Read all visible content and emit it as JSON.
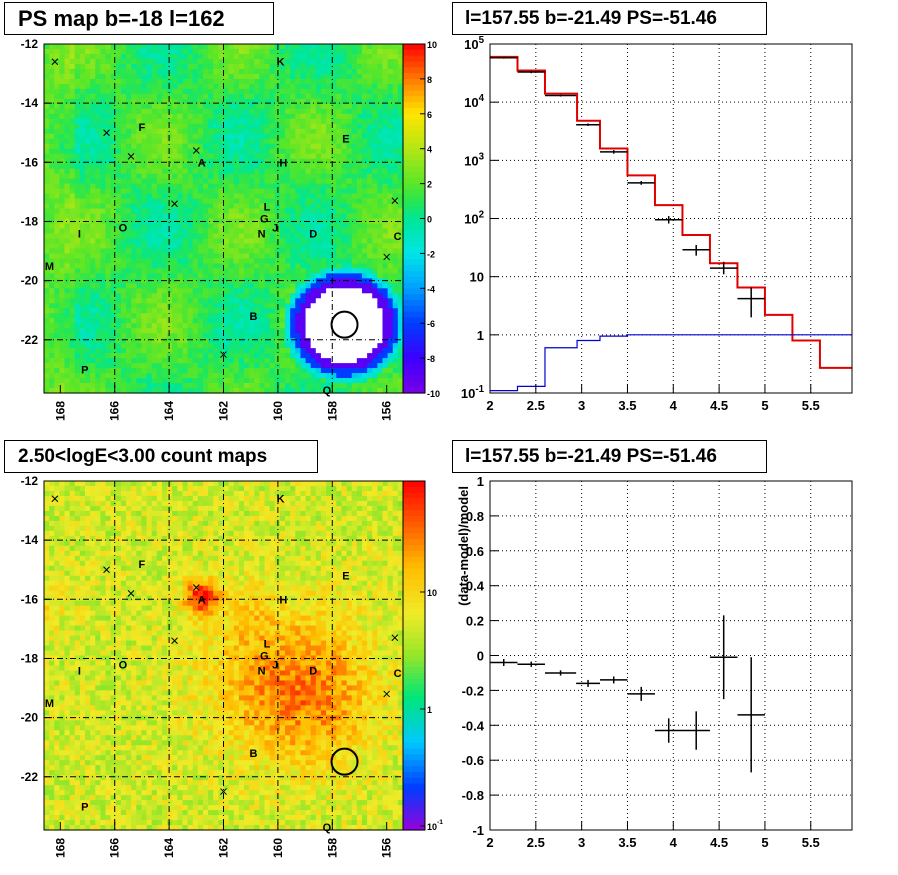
{
  "titles": {
    "ps_map": "PS map b=-18 l=162",
    "spectrum": "l=157.55 b=-21.49 PS=-51.46",
    "count_map": "2.50<logE<3.00 count maps",
    "residual": "l=157.55 b=-21.49 PS=-51.46"
  },
  "chart_data": [
    {
      "type": "heatmap",
      "title": "PS map b=-18 l=162",
      "x_ticks": [
        "168",
        "166",
        "164",
        "162",
        "160",
        "158",
        "156"
      ],
      "y_ticks": [
        "-12",
        "-14",
        "-16",
        "-18",
        "-20",
        "-22"
      ],
      "xlim": [
        168.6,
        155.4
      ],
      "ylim": [
        -23.8,
        -12
      ],
      "colorbar": {
        "min": -10,
        "max": 10,
        "ticks": [
          "10",
          "8",
          "6",
          "4",
          "2",
          "0",
          "-2",
          "-4",
          "-6",
          "-8",
          "-10"
        ]
      },
      "sources": [
        {
          "label": "K",
          "l": 159.9,
          "b": -12.6
        },
        {
          "label": "F",
          "l": 165.0,
          "b": -14.8
        },
        {
          "label": "E",
          "l": 157.5,
          "b": -15.2
        },
        {
          "label": "A",
          "l": 162.8,
          "b": -16.0
        },
        {
          "label": "H",
          "l": 159.8,
          "b": -16.0
        },
        {
          "label": "L",
          "l": 160.4,
          "b": -17.5
        },
        {
          "label": "G",
          "l": 160.5,
          "b": -17.9
        },
        {
          "label": "J",
          "l": 160.1,
          "b": -18.2
        },
        {
          "label": "N",
          "l": 160.6,
          "b": -18.4
        },
        {
          "label": "O",
          "l": 165.7,
          "b": -18.2
        },
        {
          "label": "I",
          "l": 167.3,
          "b": -18.4
        },
        {
          "label": "D",
          "l": 158.7,
          "b": -18.4
        },
        {
          "label": "C",
          "l": 155.6,
          "b": -18.5
        },
        {
          "label": "M",
          "l": 168.4,
          "b": -19.5
        },
        {
          "label": "B",
          "l": 160.9,
          "b": -21.2
        },
        {
          "label": "P",
          "l": 167.1,
          "b": -23.0
        },
        {
          "label": "Q",
          "l": 158.2,
          "b": -23.7
        }
      ]
    },
    {
      "type": "line",
      "title": "l=157.55 b=-21.49 PS=-51.46",
      "xlim": [
        2,
        5.95
      ],
      "ylim": [
        0.1,
        100000
      ],
      "yscale": "log",
      "x_ticks": [
        "2",
        "2.5",
        "3",
        "3.5",
        "4",
        "4.5",
        "5",
        "5.5"
      ],
      "y_ticks": [
        "10^-1",
        "1",
        "10",
        "10^2",
        "10^3",
        "10^4",
        "10^5"
      ],
      "grid": true,
      "series": [
        {
          "color": "#e00000",
          "style": "step",
          "edges": [
            2,
            2.3,
            2.6,
            2.95,
            3.2,
            3.5,
            3.8,
            4.1,
            4.4,
            4.7,
            5.0,
            5.3,
            5.6,
            5.95
          ],
          "values": [
            60000,
            35000,
            14000,
            4800,
            1600,
            550,
            170,
            52,
            17,
            6.5,
            2.2,
            0.8,
            0.27
          ]
        },
        {
          "color": "#0000d0",
          "style": "step",
          "edges": [
            2,
            2.3,
            2.6,
            2.95,
            3.2,
            3.5,
            3.8,
            4.1,
            4.4,
            4.7,
            5.0,
            5.3,
            5.6,
            5.95
          ],
          "values": [
            0.11,
            0.13,
            0.6,
            0.8,
            0.95,
            1.0,
            1.0,
            1.0,
            1.0,
            1.0,
            1.0,
            1.0,
            1.0
          ]
        },
        {
          "color": "#000000",
          "style": "errorbar",
          "x": [
            2.15,
            2.45,
            2.77,
            3.07,
            3.35,
            3.65,
            3.95,
            4.25,
            4.55,
            4.85
          ],
          "xerr": [
            0.15,
            0.15,
            0.17,
            0.13,
            0.15,
            0.15,
            0.15,
            0.15,
            0.15,
            0.15
          ],
          "values": [
            58000,
            33000,
            13000,
            4100,
            1400,
            410,
            95,
            29,
            14,
            4.2
          ],
          "ylow": [
            56000,
            31500,
            12500,
            3900,
            1300,
            380,
            82,
            23,
            11,
            2.0
          ],
          "yhigh": [
            60000,
            34500,
            13500,
            4300,
            1500,
            440,
            110,
            35,
            18,
            6.5
          ]
        }
      ]
    },
    {
      "type": "heatmap",
      "title": "2.50<logE<3.00 count maps",
      "x_ticks": [
        "168",
        "166",
        "164",
        "162",
        "160",
        "158",
        "156"
      ],
      "y_ticks": [
        "-12",
        "-14",
        "-16",
        "-18",
        "-20",
        "-22"
      ],
      "xlim": [
        168.6,
        155.4
      ],
      "ylim": [
        -23.8,
        -12
      ],
      "colorbar": {
        "scale": "log",
        "ticks": [
          "10",
          "1",
          "10^-1"
        ]
      }
    },
    {
      "type": "scatter",
      "title": "l=157.55 b=-21.49 PS=-51.46",
      "ylabel": "(data-model)/model",
      "xlim": [
        2,
        5.95
      ],
      "ylim": [
        -1,
        1
      ],
      "x_ticks": [
        "2",
        "2.5",
        "3",
        "3.5",
        "4",
        "4.5",
        "5",
        "5.5"
      ],
      "y_ticks": [
        "1",
        "0.8",
        "0.6",
        "0.4",
        "0.2",
        "0",
        "-0.2",
        "-0.4",
        "-0.6",
        "-0.8",
        "-1"
      ],
      "grid": true,
      "x": [
        2.15,
        2.45,
        2.77,
        3.07,
        3.35,
        3.65,
        3.95,
        4.25,
        4.55,
        4.85
      ],
      "xerr": [
        0.15,
        0.15,
        0.17,
        0.13,
        0.15,
        0.15,
        0.15,
        0.15,
        0.15,
        0.15
      ],
      "y": [
        -0.04,
        -0.05,
        -0.1,
        -0.16,
        -0.14,
        -0.22,
        -0.43,
        -0.43,
        -0.01,
        -0.34
      ],
      "yerr": [
        0.02,
        0.015,
        0.015,
        0.02,
        0.02,
        0.04,
        0.07,
        0.11,
        0.24,
        0.33
      ]
    }
  ]
}
